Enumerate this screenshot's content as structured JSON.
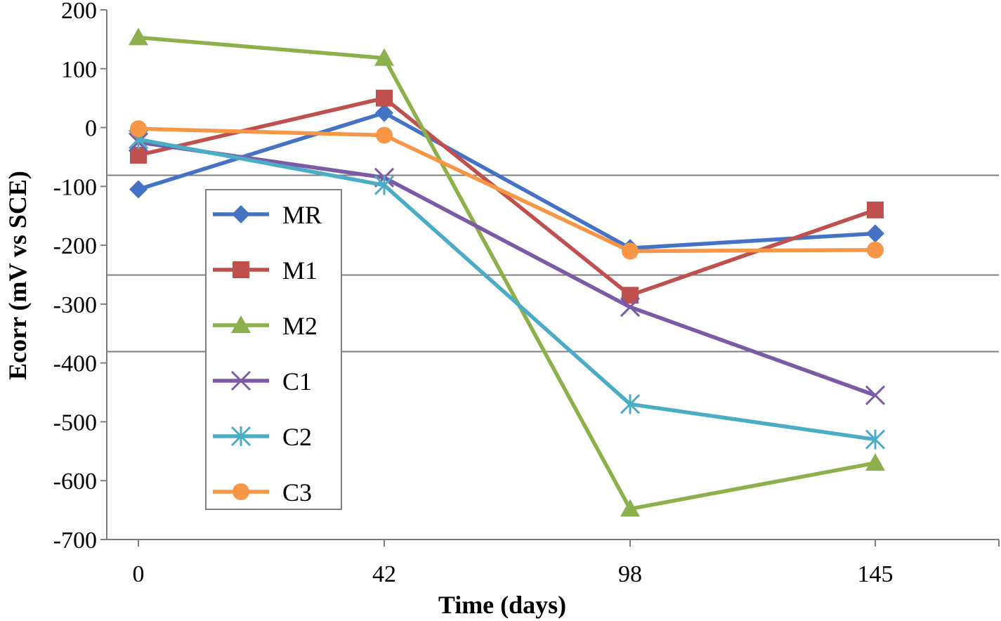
{
  "chart_data": {
    "type": "line",
    "title": "",
    "xlabel": "Time (days)",
    "ylabel": "Ecorr (mV vs SCE)",
    "x": [
      0,
      42,
      98,
      145
    ],
    "x_tick_labels": [
      "0",
      "42",
      "98",
      "145"
    ],
    "ylim": [
      -700,
      200
    ],
    "y_ticks": [
      200,
      100,
      0,
      -100,
      -200,
      -300,
      -400,
      -500,
      -600,
      -700
    ],
    "y_tick_labels": [
      "200",
      "100",
      "0",
      "-100",
      "-200",
      "-300",
      "-400",
      "-500",
      "-600",
      "-700"
    ],
    "reference_lines": [
      -80,
      -250,
      -380
    ],
    "legend_position": "left-center",
    "series": [
      {
        "name": "MR",
        "values": [
          -105,
          25,
          -205,
          -180
        ],
        "color": "#4472c4",
        "marker": "diamond"
      },
      {
        "name": "M1",
        "values": [
          -47,
          50,
          -285,
          -140
        ],
        "color": "#c0504d",
        "marker": "square"
      },
      {
        "name": "M2",
        "values": [
          153,
          118,
          -648,
          -570
        ],
        "color": "#8db04c",
        "marker": "triangle"
      },
      {
        "name": "C1",
        "values": [
          -25,
          -85,
          -305,
          -455
        ],
        "color": "#7b5aa6",
        "marker": "x"
      },
      {
        "name": "C2",
        "values": [
          -20,
          -98,
          -470,
          -530
        ],
        "color": "#4bacc6",
        "marker": "asterisk"
      },
      {
        "name": "C3",
        "values": [
          -2,
          -13,
          -210,
          -208
        ],
        "color": "#f79646",
        "marker": "circle"
      }
    ]
  }
}
